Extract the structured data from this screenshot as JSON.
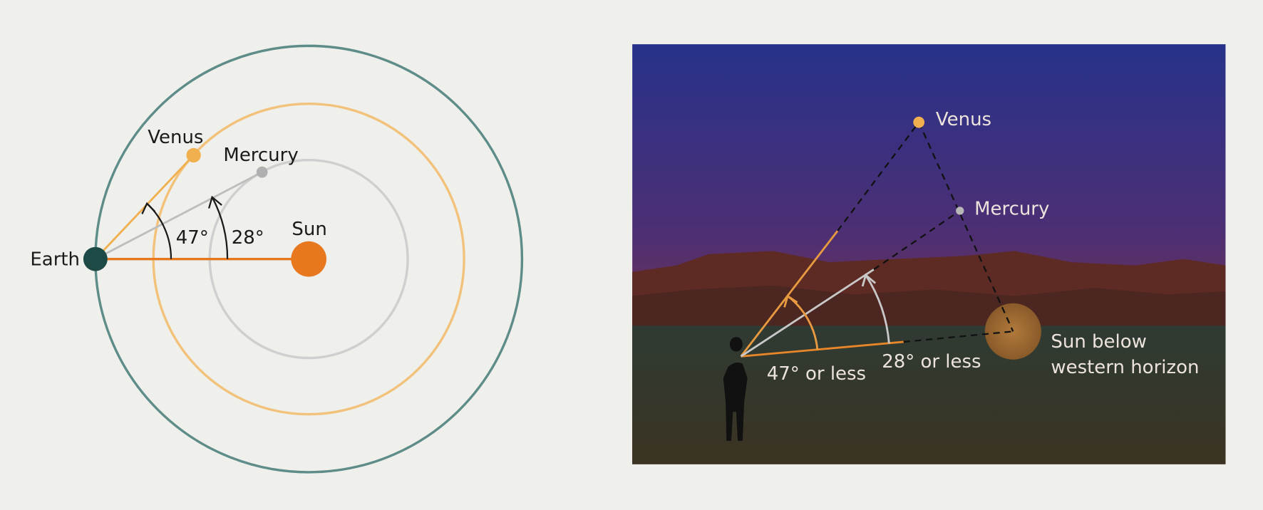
{
  "left_panel": {
    "venus": "Venus",
    "mercury": "Mercury",
    "earth": "Earth",
    "sun": "Sun",
    "venus_angle": "47°",
    "mercury_angle": "28°"
  },
  "right_panel": {
    "venus": "Venus",
    "mercury": "Mercury",
    "venus_angle": "47° or less",
    "mercury_angle": "28° or less",
    "sun_label": [
      "Sun below",
      "western horizon"
    ]
  }
}
